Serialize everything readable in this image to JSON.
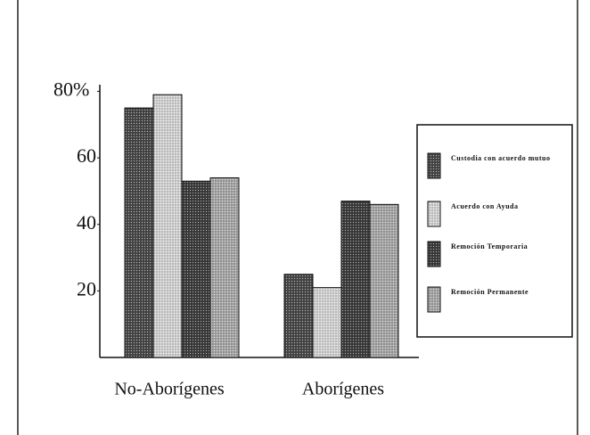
{
  "chart_data": {
    "type": "bar",
    "categories": [
      "No-Aborígenes",
      "Aborígenes"
    ],
    "series": [
      {
        "name": "Custodia con acuerdo mutuo",
        "color": "#4a4a4a",
        "values": [
          75,
          25
        ]
      },
      {
        "name": "Acuerdo con Ayuda",
        "color": "#d4d4d4",
        "values": [
          79,
          21
        ]
      },
      {
        "name": "Remoción Temporaria",
        "color": "#3e3e3e",
        "values": [
          53,
          47
        ]
      },
      {
        "name": "Remoción Permanente",
        "color": "#a8a8a8",
        "values": [
          54,
          46
        ]
      }
    ],
    "ylim": [
      0,
      82
    ],
    "yticks": [
      20,
      40,
      60,
      {
        "value": 80,
        "label": "80%"
      }
    ],
    "legend": "right"
  }
}
